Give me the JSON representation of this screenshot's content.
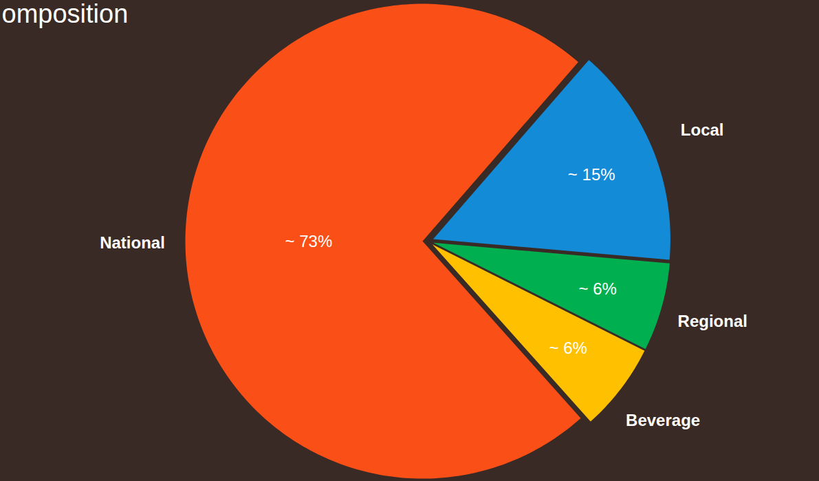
{
  "chart_data": {
    "type": "pie",
    "title": "omposition",
    "categories": [
      "Local",
      "Regional",
      "Beverage",
      "National"
    ],
    "values": [
      15,
      6,
      6,
      73
    ],
    "value_labels": [
      "~ 15%",
      "~ 6%",
      "~ 6%",
      "~ 73%"
    ],
    "colors": [
      "#138bd6",
      "#00b050",
      "#ffc000",
      "#fa5018"
    ],
    "data_labels": true
  }
}
